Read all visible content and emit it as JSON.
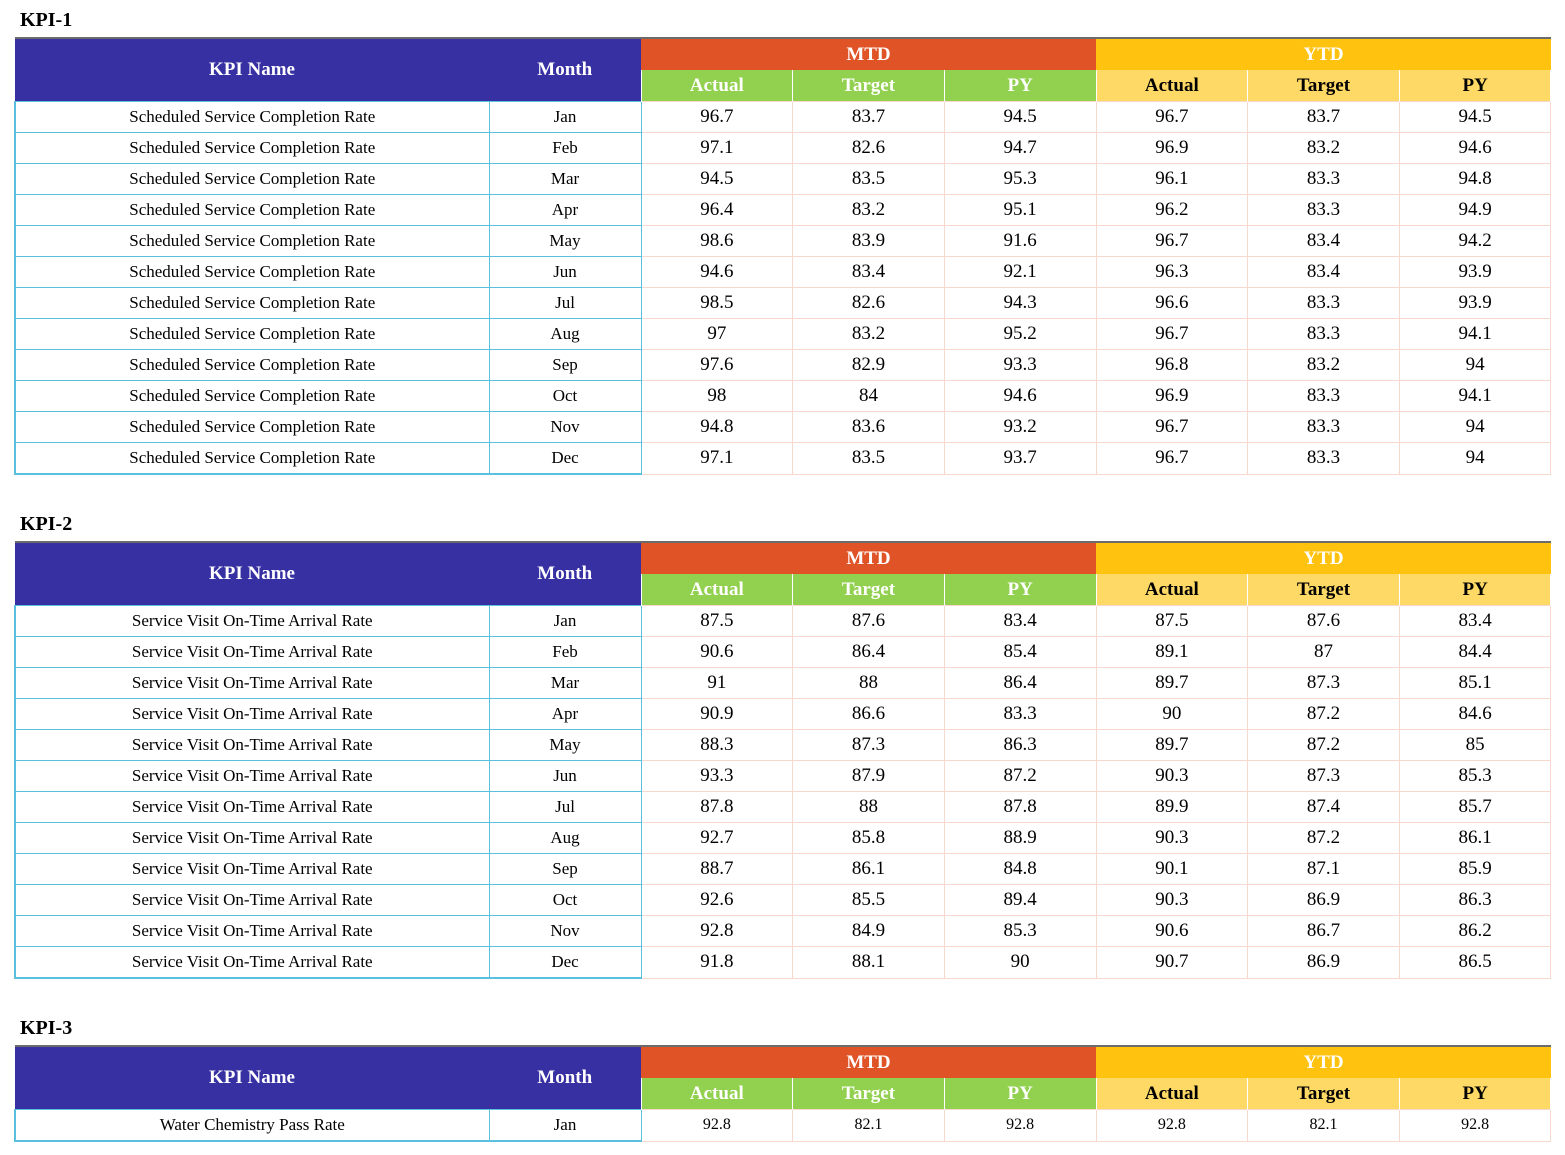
{
  "headers": {
    "kpi_name": "KPI Name",
    "month": "Month",
    "mtd": "MTD",
    "ytd": "YTD",
    "sub": [
      "Actual",
      "Target",
      "PY"
    ]
  },
  "colors": {
    "header_blue": "#3730a3",
    "mtd_orange": "#e05326",
    "ytd_gold": "#ffc20e",
    "mtd_sub_green": "#92d050",
    "ytd_sub_yellow": "#ffd966",
    "row_border_blue": "#5bc0de",
    "num_border_peach": "#f8d8cc"
  },
  "sections": [
    {
      "title": "KPI-1",
      "rows": [
        {
          "name": "Scheduled Service Completion Rate",
          "month": "Jan",
          "mtd": [
            "96.7",
            "83.7",
            "94.5"
          ],
          "ytd": [
            "96.7",
            "83.7",
            "94.5"
          ]
        },
        {
          "name": "Scheduled Service Completion Rate",
          "month": "Feb",
          "mtd": [
            "97.1",
            "82.6",
            "94.7"
          ],
          "ytd": [
            "96.9",
            "83.2",
            "94.6"
          ]
        },
        {
          "name": "Scheduled Service Completion Rate",
          "month": "Mar",
          "mtd": [
            "94.5",
            "83.5",
            "95.3"
          ],
          "ytd": [
            "96.1",
            "83.3",
            "94.8"
          ]
        },
        {
          "name": "Scheduled Service Completion Rate",
          "month": "Apr",
          "mtd": [
            "96.4",
            "83.2",
            "95.1"
          ],
          "ytd": [
            "96.2",
            "83.3",
            "94.9"
          ]
        },
        {
          "name": "Scheduled Service Completion Rate",
          "month": "May",
          "mtd": [
            "98.6",
            "83.9",
            "91.6"
          ],
          "ytd": [
            "96.7",
            "83.4",
            "94.2"
          ]
        },
        {
          "name": "Scheduled Service Completion Rate",
          "month": "Jun",
          "mtd": [
            "94.6",
            "83.4",
            "92.1"
          ],
          "ytd": [
            "96.3",
            "83.4",
            "93.9"
          ]
        },
        {
          "name": "Scheduled Service Completion Rate",
          "month": "Jul",
          "mtd": [
            "98.5",
            "82.6",
            "94.3"
          ],
          "ytd": [
            "96.6",
            "83.3",
            "93.9"
          ]
        },
        {
          "name": "Scheduled Service Completion Rate",
          "month": "Aug",
          "mtd": [
            "97",
            "83.2",
            "95.2"
          ],
          "ytd": [
            "96.7",
            "83.3",
            "94.1"
          ]
        },
        {
          "name": "Scheduled Service Completion Rate",
          "month": "Sep",
          "mtd": [
            "97.6",
            "82.9",
            "93.3"
          ],
          "ytd": [
            "96.8",
            "83.2",
            "94"
          ]
        },
        {
          "name": "Scheduled Service Completion Rate",
          "month": "Oct",
          "mtd": [
            "98",
            "84",
            "94.6"
          ],
          "ytd": [
            "96.9",
            "83.3",
            "94.1"
          ]
        },
        {
          "name": "Scheduled Service Completion Rate",
          "month": "Nov",
          "mtd": [
            "94.8",
            "83.6",
            "93.2"
          ],
          "ytd": [
            "96.7",
            "83.3",
            "94"
          ]
        },
        {
          "name": "Scheduled Service Completion Rate",
          "month": "Dec",
          "mtd": [
            "97.1",
            "83.5",
            "93.7"
          ],
          "ytd": [
            "96.7",
            "83.3",
            "94"
          ]
        }
      ]
    },
    {
      "title": "KPI-2",
      "rows": [
        {
          "name": "Service Visit On-Time Arrival Rate",
          "month": "Jan",
          "mtd": [
            "87.5",
            "87.6",
            "83.4"
          ],
          "ytd": [
            "87.5",
            "87.6",
            "83.4"
          ]
        },
        {
          "name": "Service Visit On-Time Arrival Rate",
          "month": "Feb",
          "mtd": [
            "90.6",
            "86.4",
            "85.4"
          ],
          "ytd": [
            "89.1",
            "87",
            "84.4"
          ]
        },
        {
          "name": "Service Visit On-Time Arrival Rate",
          "month": "Mar",
          "mtd": [
            "91",
            "88",
            "86.4"
          ],
          "ytd": [
            "89.7",
            "87.3",
            "85.1"
          ]
        },
        {
          "name": "Service Visit On-Time Arrival Rate",
          "month": "Apr",
          "mtd": [
            "90.9",
            "86.6",
            "83.3"
          ],
          "ytd": [
            "90",
            "87.2",
            "84.6"
          ]
        },
        {
          "name": "Service Visit On-Time Arrival Rate",
          "month": "May",
          "mtd": [
            "88.3",
            "87.3",
            "86.3"
          ],
          "ytd": [
            "89.7",
            "87.2",
            "85"
          ]
        },
        {
          "name": "Service Visit On-Time Arrival Rate",
          "month": "Jun",
          "mtd": [
            "93.3",
            "87.9",
            "87.2"
          ],
          "ytd": [
            "90.3",
            "87.3",
            "85.3"
          ]
        },
        {
          "name": "Service Visit On-Time Arrival Rate",
          "month": "Jul",
          "mtd": [
            "87.8",
            "88",
            "87.8"
          ],
          "ytd": [
            "89.9",
            "87.4",
            "85.7"
          ]
        },
        {
          "name": "Service Visit On-Time Arrival Rate",
          "month": "Aug",
          "mtd": [
            "92.7",
            "85.8",
            "88.9"
          ],
          "ytd": [
            "90.3",
            "87.2",
            "86.1"
          ]
        },
        {
          "name": "Service Visit On-Time Arrival Rate",
          "month": "Sep",
          "mtd": [
            "88.7",
            "86.1",
            "84.8"
          ],
          "ytd": [
            "90.1",
            "87.1",
            "85.9"
          ]
        },
        {
          "name": "Service Visit On-Time Arrival Rate",
          "month": "Oct",
          "mtd": [
            "92.6",
            "85.5",
            "89.4"
          ],
          "ytd": [
            "90.3",
            "86.9",
            "86.3"
          ]
        },
        {
          "name": "Service Visit On-Time Arrival Rate",
          "month": "Nov",
          "mtd": [
            "92.8",
            "84.9",
            "85.3"
          ],
          "ytd": [
            "90.6",
            "86.7",
            "86.2"
          ]
        },
        {
          "name": "Service Visit On-Time Arrival Rate",
          "month": "Dec",
          "mtd": [
            "91.8",
            "88.1",
            "90"
          ],
          "ytd": [
            "90.7",
            "86.9",
            "86.5"
          ]
        }
      ]
    },
    {
      "title": "KPI-3",
      "rows": [
        {
          "name": "Water Chemistry Pass Rate",
          "month": "Jan",
          "mtd": [
            "92.8",
            "82.1",
            "92.8"
          ],
          "ytd": [
            "92.8",
            "82.1",
            "92.8"
          ]
        }
      ]
    }
  ]
}
